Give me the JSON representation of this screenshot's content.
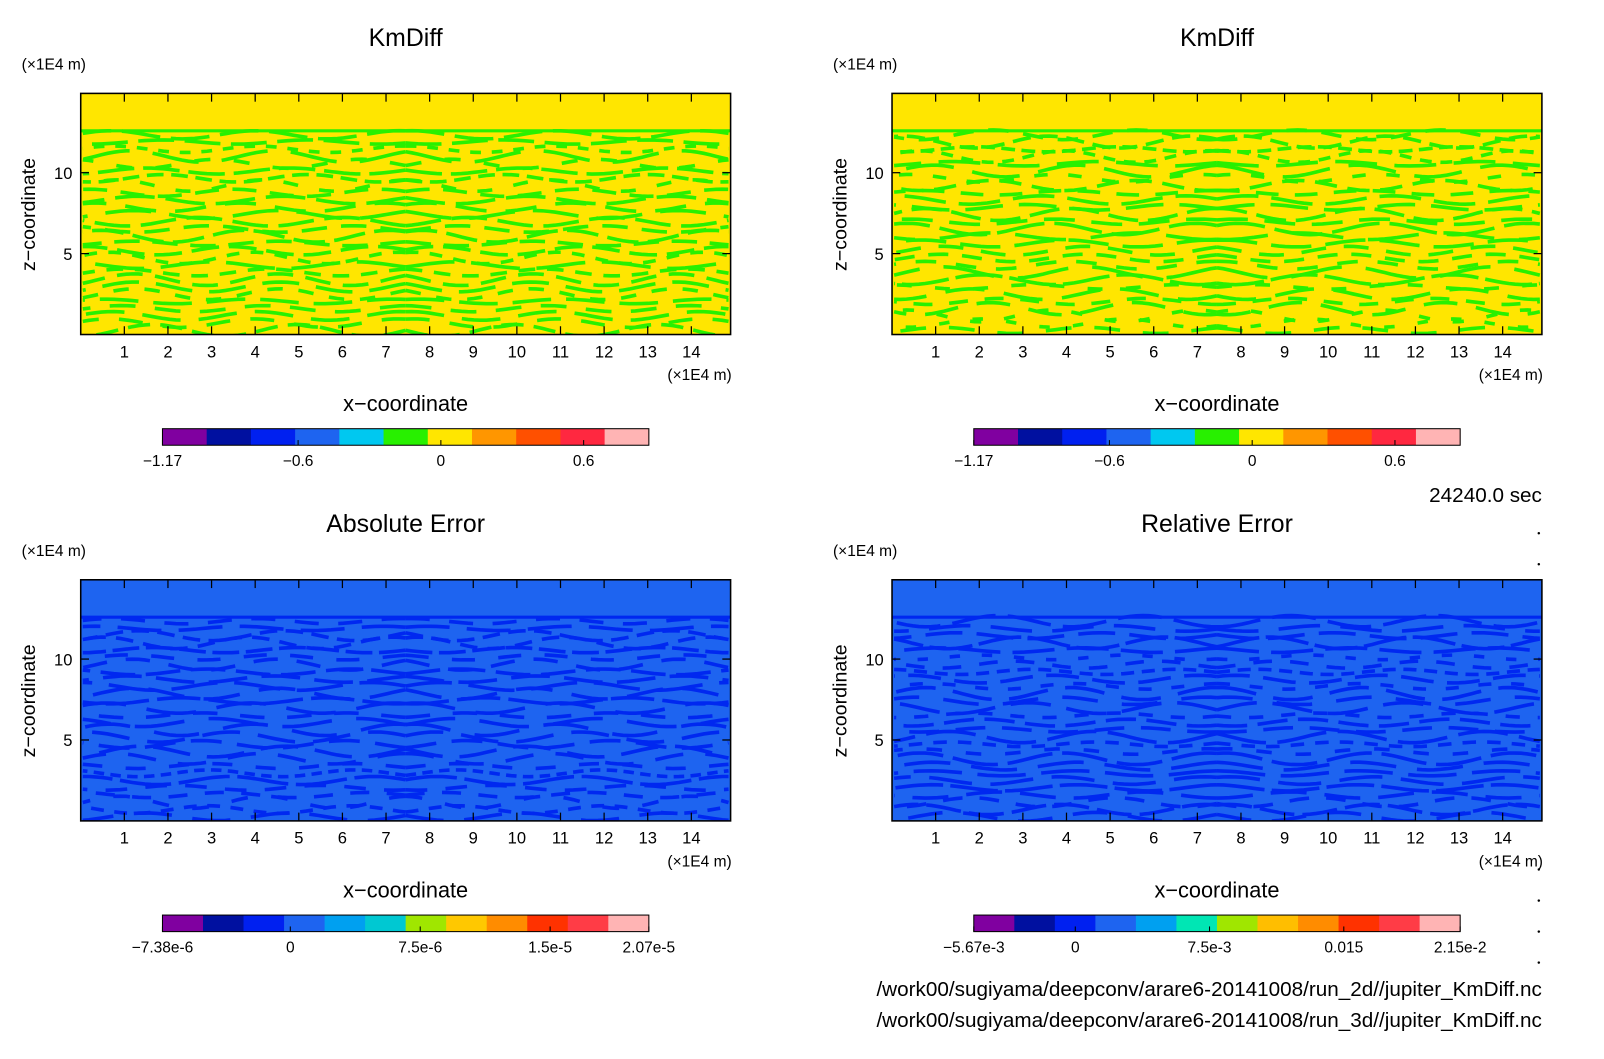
{
  "time": "24240.0 sec",
  "files": [
    "/work00/sugiyama/deepconv/arare6-20141008/run_2d//jupiter_KmDiff.nc",
    "/work00/sugiyama/deepconv/arare6-20141008/run_3d//jupiter_KmDiff.nc"
  ],
  "chart_data": [
    {
      "type": "contour",
      "title": "KmDiff",
      "xlabel": "x−coordinate",
      "ylabel": "z−coordinate",
      "xunit": "(×1E4 m)",
      "yunit": "(×1E4 m)",
      "xlim": [
        0,
        14.9
      ],
      "ylim": [
        0,
        14.9
      ],
      "xticks": [
        1,
        2,
        3,
        4,
        5,
        6,
        7,
        8,
        9,
        10,
        11,
        12,
        13,
        14
      ],
      "yticks": [
        5,
        10
      ],
      "field_colors": [
        "#ffe600",
        "#28f000"
      ],
      "colorbar": {
        "lim": [
          -1.17,
          0.874
        ],
        "ticks": [
          {
            "value": -1.17,
            "label": "−1.17"
          },
          {
            "value": -0.6,
            "label": "−0.6"
          },
          0,
          0.6
        ],
        "colors": [
          "#8000a0",
          "#0010a0",
          "#0020f0",
          "#1e64f0",
          "#00c8f0",
          "#28f000",
          "#ffe600",
          "#ff9600",
          "#ff5000",
          "#ff2840",
          "#ffb4b4"
        ]
      }
    },
    {
      "type": "contour",
      "title": "KmDiff",
      "xlabel": "x−coordinate",
      "ylabel": "z−coordinate",
      "xunit": "(×1E4 m)",
      "yunit": "(×1E4 m)",
      "xlim": [
        0,
        14.9
      ],
      "ylim": [
        0,
        14.9
      ],
      "xticks": [
        1,
        2,
        3,
        4,
        5,
        6,
        7,
        8,
        9,
        10,
        11,
        12,
        13,
        14
      ],
      "yticks": [
        5,
        10
      ],
      "field_colors": [
        "#ffe600",
        "#28f000"
      ],
      "colorbar": {
        "lim": [
          -1.17,
          0.874
        ],
        "ticks": [
          {
            "value": -1.17,
            "label": "−1.17"
          },
          {
            "value": -0.6,
            "label": "−0.6"
          },
          0,
          0.6
        ],
        "colors": [
          "#8000a0",
          "#0010a0",
          "#0020f0",
          "#1e64f0",
          "#00c8f0",
          "#28f000",
          "#ffe600",
          "#ff9600",
          "#ff5000",
          "#ff2840",
          "#ffb4b4"
        ]
      }
    },
    {
      "type": "contour",
      "title": "Absolute Error",
      "xlabel": "x−coordinate",
      "ylabel": "z−coordinate",
      "xunit": "(×1E4 m)",
      "yunit": "(×1E4 m)",
      "xlim": [
        0,
        14.9
      ],
      "ylim": [
        0,
        14.9
      ],
      "xticks": [
        1,
        2,
        3,
        4,
        5,
        6,
        7,
        8,
        9,
        10,
        11,
        12,
        13,
        14
      ],
      "yticks": [
        5,
        10
      ],
      "field_colors": [
        "#1e64f0",
        "#0028f0"
      ],
      "colorbar": {
        "lim": [
          -7.38e-06,
          2.07e-05
        ],
        "ticks": [
          {
            "value": -7.38e-06,
            "label": "−7.38e-6"
          },
          0,
          {
            "value": 7.5e-06,
            "label": "7.5e-6"
          },
          {
            "value": 1.5e-05,
            "label": "1.5e-5"
          },
          {
            "value": 2.07e-05,
            "label": "2.07e-5"
          }
        ],
        "colors": [
          "#8000a0",
          "#0010a0",
          "#0020f0",
          "#1e64f0",
          "#00a0f0",
          "#00c8d2",
          "#a0e600",
          "#ffc800",
          "#ff8c00",
          "#ff3200",
          "#ff3c46",
          "#ffb4b4"
        ]
      }
    },
    {
      "type": "contour",
      "title": "Relative Error",
      "xlabel": "x−coordinate",
      "ylabel": "z−coordinate",
      "xunit": "(×1E4 m)",
      "yunit": "(×1E4 m)",
      "xlim": [
        0,
        14.9
      ],
      "ylim": [
        0,
        14.9
      ],
      "xticks": [
        1,
        2,
        3,
        4,
        5,
        6,
        7,
        8,
        9,
        10,
        11,
        12,
        13,
        14
      ],
      "yticks": [
        5,
        10
      ],
      "field_colors": [
        "#1e64f0",
        "#0028f0"
      ],
      "colorbar": {
        "lim": [
          -0.00567,
          0.0215
        ],
        "ticks": [
          {
            "value": -0.00567,
            "label": "−5.67e-3"
          },
          0,
          {
            "value": 0.0075,
            "label": "7.5e-3"
          },
          0.015,
          {
            "value": 0.0215,
            "label": "2.15e-2"
          }
        ],
        "colors": [
          "#8000a0",
          "#0010a0",
          "#0020f0",
          "#1e64f0",
          "#00a0f0",
          "#00e6b4",
          "#a0e600",
          "#ffbe00",
          "#ff8c00",
          "#ff3200",
          "#ff3c46",
          "#ffb4b4"
        ]
      }
    }
  ]
}
